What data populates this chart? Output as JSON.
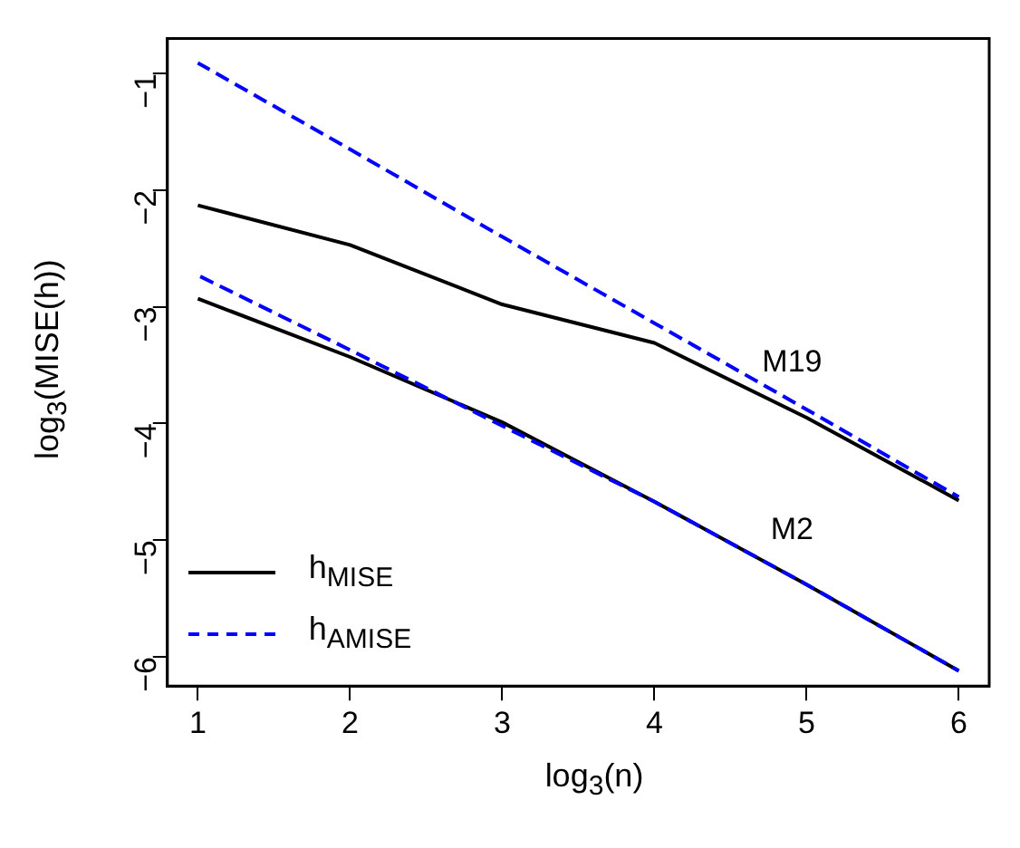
{
  "chart_data": {
    "type": "line",
    "xlabel": "log$_{3}$(n)",
    "ylabel": "log$_{3}$(MISE(h))",
    "x": [
      1,
      2,
      3,
      4,
      5,
      6
    ],
    "series": [
      {
        "name": "h$_{MISE}$",
        "color": "#000000",
        "line_style": "solid",
        "values": [
          -2.13,
          -2.47,
          -2.98,
          -3.31,
          -3.95,
          -4.66
        ]
      },
      {
        "name": "h$_{AMISE}$",
        "color": "#0000ff",
        "line_style": "dashed",
        "values": [
          -0.91,
          -1.65,
          -2.4,
          -3.14,
          -3.88,
          -4.63
        ]
      },
      {
        "color": "#000000",
        "line_style": "solid",
        "values": [
          -2.93,
          -3.43,
          -3.99,
          -4.67,
          -5.38,
          -6.12
        ]
      },
      {
        "color": "#0000ff",
        "line_style": "dashed",
        "values": [
          -2.73,
          -3.37,
          -4.02,
          -4.67,
          -5.38,
          -6.12
        ]
      }
    ],
    "annotations": [
      {
        "text": "M19",
        "x": 5,
        "y": -3.95
      },
      {
        "text": "M2",
        "x": 5,
        "y": -5.38
      }
    ],
    "xlim": [
      0.8,
      6.2
    ],
    "ylim": [
      -6.25,
      -0.7
    ],
    "xticks": [
      1,
      2,
      3,
      4,
      5,
      6
    ],
    "yticks": [
      -6,
      -5,
      -4,
      -3,
      -2,
      -1
    ],
    "grid": false,
    "legend": "bottom left",
    "marker": "none"
  }
}
